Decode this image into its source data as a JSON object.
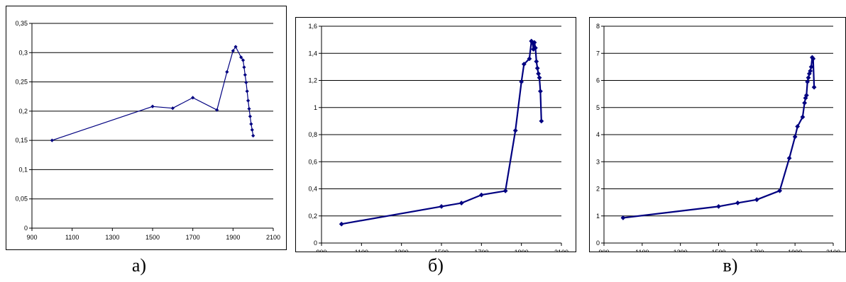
{
  "chart_data": [
    {
      "type": "line",
      "caption": "а)",
      "xlim": [
        900,
        2100
      ],
      "ylim": [
        0,
        0.35
      ],
      "xticks": [
        900,
        1100,
        1300,
        1500,
        1700,
        1900,
        2100
      ],
      "yticks": [
        0,
        0.05,
        0.1,
        0.15,
        0.2,
        0.25,
        0.3,
        0.35
      ],
      "xtick_labels": [
        "900",
        "1100",
        "1300",
        "1500",
        "1700",
        "1900",
        "2100"
      ],
      "ytick_labels": [
        "0",
        "0,05",
        "0,1",
        "0,15",
        "0,2",
        "0,25",
        "0,3",
        "0,35"
      ],
      "grid": "horizontal",
      "line_color": "#000080",
      "x": [
        1000,
        1500,
        1600,
        1700,
        1820,
        1870,
        1900,
        1913,
        1940,
        1950,
        1955,
        1960,
        1965,
        1970,
        1975,
        1980,
        1985,
        1990,
        1995,
        2000
      ],
      "y": [
        0.15,
        0.208,
        0.205,
        0.223,
        0.202,
        0.267,
        0.303,
        0.31,
        0.292,
        0.287,
        0.275,
        0.262,
        0.249,
        0.234,
        0.218,
        0.204,
        0.191,
        0.178,
        0.168,
        0.158
      ]
    },
    {
      "type": "line",
      "caption": "б)",
      "xlim": [
        900,
        2100
      ],
      "ylim": [
        0,
        1.6
      ],
      "xticks": [
        900,
        1100,
        1300,
        1500,
        1700,
        1900,
        2100
      ],
      "yticks": [
        0,
        0.2,
        0.4,
        0.6,
        0.8,
        1.0,
        1.2,
        1.4,
        1.6
      ],
      "xtick_labels": [
        "900",
        "1100",
        "1300",
        "1500",
        "1700",
        "1900",
        "2100"
      ],
      "ytick_labels": [
        "0",
        "0,2",
        "0,4",
        "0,6",
        "0,8",
        "1",
        "1,2",
        "1,4",
        "1,6"
      ],
      "grid": "horizontal",
      "line_color": "#000080",
      "x": [
        1000,
        1500,
        1600,
        1700,
        1820,
        1870,
        1900,
        1913,
        1940,
        1950,
        1955,
        1960,
        1965,
        1970,
        1975,
        1980,
        1985,
        1990,
        1995,
        2000
      ],
      "y": [
        0.14,
        0.27,
        0.295,
        0.355,
        0.385,
        0.83,
        1.19,
        1.32,
        1.36,
        1.49,
        1.48,
        1.43,
        1.48,
        1.44,
        1.34,
        1.29,
        1.25,
        1.22,
        1.12,
        0.9
      ]
    },
    {
      "type": "line",
      "caption": "в)",
      "xlim": [
        900,
        2100
      ],
      "ylim": [
        0,
        8
      ],
      "xticks": [
        900,
        1100,
        1300,
        1500,
        1700,
        1900,
        2100
      ],
      "yticks": [
        0,
        1,
        2,
        3,
        4,
        5,
        6,
        7,
        8
      ],
      "xtick_labels": [
        "900",
        "1100",
        "1300",
        "1500",
        "1700",
        "1900",
        "2100"
      ],
      "ytick_labels": [
        "0",
        "1",
        "2",
        "3",
        "4",
        "5",
        "6",
        "7",
        "8"
      ],
      "grid": "horizontal",
      "line_color": "#000080",
      "x": [
        1000,
        1500,
        1600,
        1700,
        1820,
        1870,
        1900,
        1913,
        1940,
        1950,
        1955,
        1960,
        1965,
        1970,
        1975,
        1980,
        1985,
        1990,
        1995,
        2000
      ],
      "y": [
        0.93,
        1.35,
        1.48,
        1.6,
        1.93,
        3.13,
        3.92,
        4.3,
        4.65,
        5.17,
        5.35,
        5.45,
        5.95,
        6.1,
        6.25,
        6.35,
        6.5,
        6.85,
        6.8,
        5.75
      ]
    }
  ]
}
